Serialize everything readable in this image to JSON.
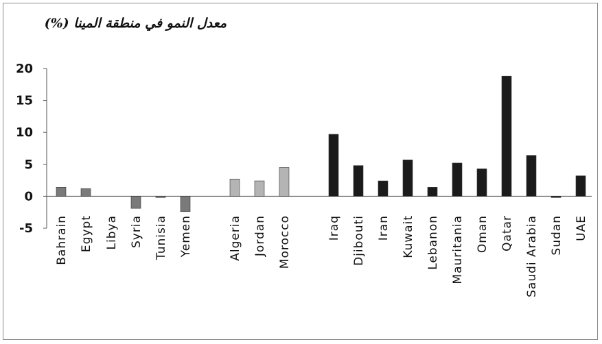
{
  "chart_data": {
    "type": "bar",
    "title": "معدل النمو في منطقة المينا (%)",
    "xlabel": "",
    "ylabel": "",
    "ylim": [
      -5,
      20
    ],
    "yticks": [
      "-5",
      "0",
      "5",
      "10",
      "15",
      "20"
    ],
    "grid": false,
    "legend": "none",
    "categories": [
      "Bahrain",
      "Egypt",
      "Libya",
      "Syria",
      "Tunisia",
      "Yemen",
      "Algeria",
      "Jordan",
      "Morocco",
      "Iraq",
      "Djibouti",
      "Iran",
      "Kuwait",
      "Lebanon",
      "Mauritania",
      "Oman",
      "Qatar",
      "Saudi Arabia",
      "Sudan",
      "UAE"
    ],
    "values": [
      1.4,
      1.2,
      0,
      -1.9,
      -0.2,
      -2.4,
      2.7,
      2.4,
      4.5,
      9.7,
      4.8,
      2.4,
      5.7,
      1.4,
      5.2,
      4.3,
      18.8,
      6.4,
      -0.2,
      3.2
    ],
    "groups": [
      0,
      0,
      0,
      0,
      0,
      0,
      1,
      1,
      1,
      2,
      2,
      2,
      2,
      2,
      2,
      2,
      2,
      2,
      2,
      2
    ],
    "group_colors": [
      "#7a7a7a",
      "#b4b4b4",
      "#1b1b1b"
    ]
  }
}
